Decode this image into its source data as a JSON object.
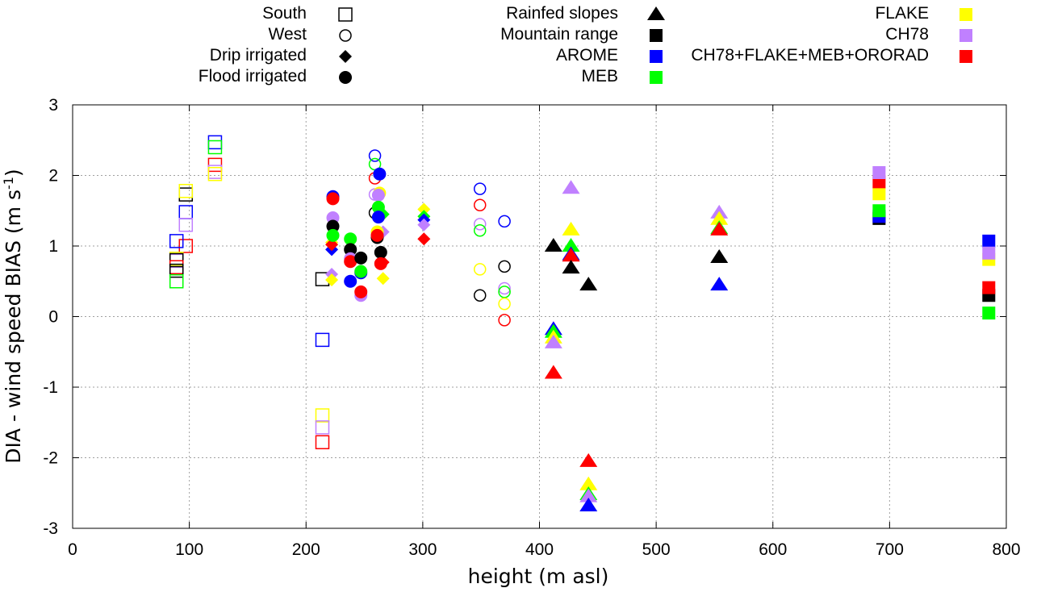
{
  "chart_data": {
    "type": "scatter",
    "title": "",
    "xlabel": "height (m asl)",
    "ylabel": "DIA - wind speed BIAS (m s",
    "ylabel_sup": "-1",
    "ylabel_end": ")",
    "xlim": [
      0,
      800
    ],
    "ylim": [
      -3,
      3
    ],
    "xticks": [
      0,
      100,
      200,
      300,
      400,
      500,
      600,
      700,
      800
    ],
    "yticks": [
      -3,
      -2,
      -1,
      0,
      1,
      2,
      3
    ],
    "grid": true,
    "legend_shapes": [
      {
        "label": "South",
        "shape": "square-open"
      },
      {
        "label": "West",
        "shape": "circle-open"
      },
      {
        "label": "Drip irrigated",
        "shape": "diamond"
      },
      {
        "label": "Flood irrigated",
        "shape": "circle"
      },
      {
        "label": "Rainfed slopes",
        "shape": "triangle"
      },
      {
        "label": "Mountain range",
        "shape": "square"
      }
    ],
    "legend_models": [
      {
        "label": "AROME",
        "color": "#0000ff"
      },
      {
        "label": "MEB",
        "color": "#00ff00"
      },
      {
        "label": "FLAKE",
        "color": "#ffff00"
      },
      {
        "label": "CH78",
        "color": "#c080ff"
      },
      {
        "label": "CH78+FLAKE+MEB+ORORAD",
        "color": "#ff0000"
      }
    ],
    "legend_placement": "top",
    "model_colors": {
      "reference": "#000000",
      "AROME": "#0000ff",
      "MEB": "#00ff00",
      "FLAKE": "#ffff00",
      "CH78": "#c080ff",
      "CH78+FLAKE+MEB+ORORAD": "#ff0000"
    },
    "series": [
      {
        "site": "South",
        "shape": "square-open",
        "points": [
          {
            "x": 97,
            "y": 1.73,
            "model": "reference"
          },
          {
            "x": 97,
            "y": 1.78,
            "model": "FLAKE"
          },
          {
            "x": 97,
            "y": 1.48,
            "model": "AROME"
          },
          {
            "x": 97,
            "y": 1.3,
            "model": "CH78"
          },
          {
            "x": 97,
            "y": 1.0,
            "model": "CH78+FLAKE+MEB+ORORAD"
          },
          {
            "x": 89,
            "y": 1.07,
            "model": "AROME"
          },
          {
            "x": 89,
            "y": 0.82,
            "model": "FLAKE"
          },
          {
            "x": 89,
            "y": 0.79,
            "model": "CH78"
          },
          {
            "x": 89,
            "y": 0.8,
            "model": "reference"
          },
          {
            "x": 89,
            "y": 0.7,
            "model": "CH78+FLAKE+MEB+ORORAD"
          },
          {
            "x": 89,
            "y": 0.65,
            "model": "reference"
          },
          {
            "x": 89,
            "y": 0.5,
            "model": "MEB"
          },
          {
            "x": 122,
            "y": 2.47,
            "model": "AROME"
          },
          {
            "x": 122,
            "y": 2.4,
            "model": "MEB"
          },
          {
            "x": 122,
            "y": 2.15,
            "model": "CH78+FLAKE+MEB+ORORAD"
          },
          {
            "x": 122,
            "y": 2.05,
            "model": "CH78"
          },
          {
            "x": 122,
            "y": 2.02,
            "model": "FLAKE"
          },
          {
            "x": 214,
            "y": 0.53,
            "model": "reference"
          },
          {
            "x": 214,
            "y": -0.33,
            "model": "AROME"
          },
          {
            "x": 214,
            "y": -1.4,
            "model": "FLAKE"
          },
          {
            "x": 214,
            "y": -1.57,
            "model": "CH78"
          },
          {
            "x": 214,
            "y": -1.78,
            "model": "CH78+FLAKE+MEB+ORORAD"
          }
        ]
      },
      {
        "site": "West",
        "shape": "circle-open",
        "points": [
          {
            "x": 259,
            "y": 2.28,
            "model": "AROME"
          },
          {
            "x": 259,
            "y": 2.16,
            "model": "MEB"
          },
          {
            "x": 259,
            "y": 1.96,
            "model": "CH78+FLAKE+MEB+ORORAD"
          },
          {
            "x": 259,
            "y": 1.73,
            "model": "CH78"
          },
          {
            "x": 259,
            "y": 1.47,
            "model": "reference"
          },
          {
            "x": 349,
            "y": 1.81,
            "model": "AROME"
          },
          {
            "x": 349,
            "y": 1.58,
            "model": "CH78+FLAKE+MEB+ORORAD"
          },
          {
            "x": 349,
            "y": 1.31,
            "model": "CH78"
          },
          {
            "x": 349,
            "y": 1.22,
            "model": "MEB"
          },
          {
            "x": 349,
            "y": 0.67,
            "model": "FLAKE"
          },
          {
            "x": 349,
            "y": 0.3,
            "model": "reference"
          },
          {
            "x": 370,
            "y": 1.35,
            "model": "AROME"
          },
          {
            "x": 370,
            "y": 0.71,
            "model": "reference"
          },
          {
            "x": 370,
            "y": 0.4,
            "model": "CH78"
          },
          {
            "x": 370,
            "y": 0.35,
            "model": "MEB"
          },
          {
            "x": 370,
            "y": 0.18,
            "model": "FLAKE"
          },
          {
            "x": 370,
            "y": -0.05,
            "model": "CH78+FLAKE+MEB+ORORAD"
          }
        ]
      },
      {
        "site": "Drip irrigated",
        "shape": "diamond",
        "points": [
          {
            "x": 222,
            "y": 0.95,
            "model": "AROME"
          },
          {
            "x": 222,
            "y": 1.05,
            "model": "FLAKE"
          },
          {
            "x": 222,
            "y": 1.02,
            "model": "CH78+FLAKE+MEB+ORORAD"
          },
          {
            "x": 222,
            "y": 0.6,
            "model": "CH78"
          },
          {
            "x": 222,
            "y": 0.52,
            "model": "FLAKE"
          },
          {
            "x": 266,
            "y": 1.45,
            "model": "MEB"
          },
          {
            "x": 266,
            "y": 1.2,
            "model": "CH78"
          },
          {
            "x": 266,
            "y": 0.77,
            "model": "CH78+FLAKE+MEB+ORORAD"
          },
          {
            "x": 266,
            "y": 0.54,
            "model": "FLAKE"
          },
          {
            "x": 301,
            "y": 1.52,
            "model": "FLAKE"
          },
          {
            "x": 301,
            "y": 1.42,
            "model": "MEB"
          },
          {
            "x": 301,
            "y": 1.37,
            "model": "AROME"
          },
          {
            "x": 301,
            "y": 1.3,
            "model": "CH78"
          },
          {
            "x": 301,
            "y": 1.1,
            "model": "CH78+FLAKE+MEB+ORORAD"
          }
        ]
      },
      {
        "site": "Flood irrigated",
        "shape": "circle",
        "points": [
          {
            "x": 223,
            "y": 1.7,
            "model": "AROME"
          },
          {
            "x": 223,
            "y": 1.67,
            "model": "CH78+FLAKE+MEB+ORORAD"
          },
          {
            "x": 223,
            "y": 1.4,
            "model": "CH78"
          },
          {
            "x": 223,
            "y": 1.28,
            "model": "reference"
          },
          {
            "x": 223,
            "y": 1.15,
            "model": "MEB"
          },
          {
            "x": 238,
            "y": 1.1,
            "model": "MEB"
          },
          {
            "x": 238,
            "y": 0.95,
            "model": "reference"
          },
          {
            "x": 238,
            "y": 0.82,
            "model": "CH78"
          },
          {
            "x": 238,
            "y": 0.78,
            "model": "CH78+FLAKE+MEB+ORORAD"
          },
          {
            "x": 238,
            "y": 0.5,
            "model": "AROME"
          },
          {
            "x": 247,
            "y": 0.83,
            "model": "reference"
          },
          {
            "x": 247,
            "y": 0.62,
            "model": "AROME"
          },
          {
            "x": 247,
            "y": 0.64,
            "model": "MEB"
          },
          {
            "x": 247,
            "y": 0.3,
            "model": "CH78"
          },
          {
            "x": 247,
            "y": 0.35,
            "model": "CH78+FLAKE+MEB+ORORAD"
          },
          {
            "x": 263,
            "y": 2.02,
            "model": "AROME"
          },
          {
            "x": 263,
            "y": 1.75,
            "model": "FLAKE"
          },
          {
            "x": 262,
            "y": 1.72,
            "model": "CH78"
          },
          {
            "x": 262,
            "y": 1.55,
            "model": "MEB"
          },
          {
            "x": 262,
            "y": 1.41,
            "model": "AROME"
          },
          {
            "x": 261,
            "y": 1.2,
            "model": "FLAKE"
          },
          {
            "x": 261,
            "y": 1.12,
            "model": "reference"
          },
          {
            "x": 261,
            "y": 1.15,
            "model": "CH78+FLAKE+MEB+ORORAD"
          },
          {
            "x": 264,
            "y": 0.91,
            "model": "reference"
          },
          {
            "x": 264,
            "y": 0.75,
            "model": "CH78+FLAKE+MEB+ORORAD"
          }
        ]
      },
      {
        "site": "Rainfed slopes",
        "shape": "triangle",
        "points": [
          {
            "x": 412,
            "y": 1.0,
            "model": "reference"
          },
          {
            "x": 412,
            "y": -0.18,
            "model": "AROME"
          },
          {
            "x": 412,
            "y": -0.22,
            "model": "MEB"
          },
          {
            "x": 412,
            "y": -0.3,
            "model": "FLAKE"
          },
          {
            "x": 412,
            "y": -0.37,
            "model": "CH78"
          },
          {
            "x": 412,
            "y": -0.8,
            "model": "CH78+FLAKE+MEB+ORORAD"
          },
          {
            "x": 427,
            "y": 1.82,
            "model": "CH78"
          },
          {
            "x": 427,
            "y": 1.23,
            "model": "FLAKE"
          },
          {
            "x": 427,
            "y": 1.0,
            "model": "MEB"
          },
          {
            "x": 427,
            "y": 0.88,
            "model": "AROME"
          },
          {
            "x": 427,
            "y": 0.86,
            "model": "CH78+FLAKE+MEB+ORORAD"
          },
          {
            "x": 427,
            "y": 0.69,
            "model": "reference"
          },
          {
            "x": 442,
            "y": 0.45,
            "model": "reference"
          },
          {
            "x": 442,
            "y": -2.05,
            "model": "CH78+FLAKE+MEB+ORORAD"
          },
          {
            "x": 442,
            "y": -2.38,
            "model": "FLAKE"
          },
          {
            "x": 442,
            "y": -2.52,
            "model": "MEB"
          },
          {
            "x": 442,
            "y": -2.55,
            "model": "CH78"
          },
          {
            "x": 442,
            "y": -2.68,
            "model": "AROME"
          },
          {
            "x": 554,
            "y": 1.47,
            "model": "CH78"
          },
          {
            "x": 554,
            "y": 1.38,
            "model": "FLAKE"
          },
          {
            "x": 554,
            "y": 1.25,
            "model": "MEB"
          },
          {
            "x": 554,
            "y": 1.23,
            "model": "CH78+FLAKE+MEB+ORORAD"
          },
          {
            "x": 554,
            "y": 0.84,
            "model": "reference"
          },
          {
            "x": 554,
            "y": 0.45,
            "model": "AROME"
          }
        ]
      },
      {
        "site": "Mountain range",
        "shape": "square",
        "points": [
          {
            "x": 691,
            "y": 1.39,
            "model": "reference"
          },
          {
            "x": 691,
            "y": 1.42,
            "model": "AROME"
          },
          {
            "x": 691,
            "y": 1.5,
            "model": "MEB"
          },
          {
            "x": 691,
            "y": 1.74,
            "model": "FLAKE"
          },
          {
            "x": 691,
            "y": 1.91,
            "model": "CH78+FLAKE+MEB+ORORAD"
          },
          {
            "x": 691,
            "y": 2.04,
            "model": "CH78"
          },
          {
            "x": 785,
            "y": 1.07,
            "model": "AROME"
          },
          {
            "x": 785,
            "y": 0.81,
            "model": "FLAKE"
          },
          {
            "x": 785,
            "y": 0.9,
            "model": "CH78"
          },
          {
            "x": 785,
            "y": 0.3,
            "model": "reference"
          },
          {
            "x": 785,
            "y": 0.41,
            "model": "CH78+FLAKE+MEB+ORORAD"
          },
          {
            "x": 785,
            "y": 0.05,
            "model": "MEB"
          }
        ]
      }
    ]
  }
}
